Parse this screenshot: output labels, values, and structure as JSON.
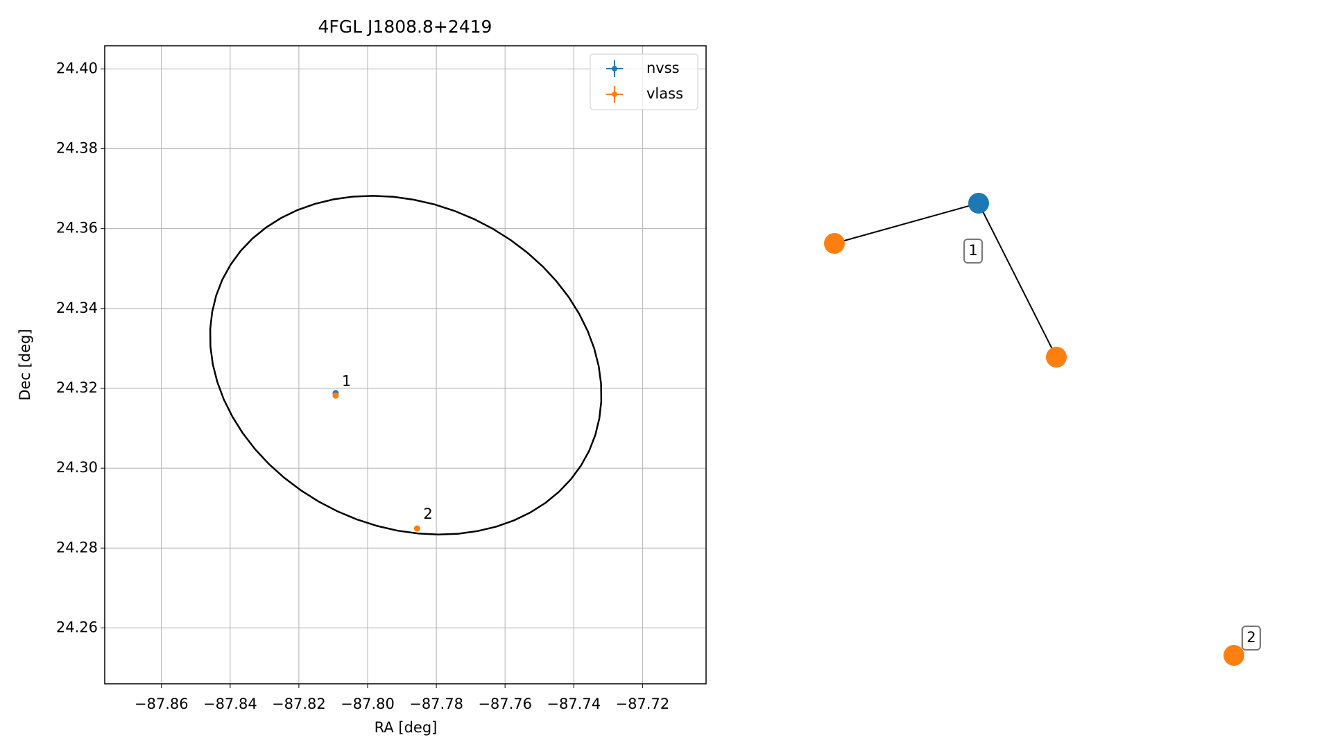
{
  "chart_data": [
    {
      "type": "scatter",
      "title": "4FGL J1808.8+2419",
      "xlabel": "RA [deg]",
      "ylabel": "Dec [deg]",
      "xlim": [
        -87.8765,
        -87.7015
      ],
      "ylim": [
        24.246,
        24.4058
      ],
      "xticks": [
        {
          "value": -87.86,
          "label": "−87.86"
        },
        {
          "value": -87.84,
          "label": "−87.84"
        },
        {
          "value": -87.82,
          "label": "−87.82"
        },
        {
          "value": -87.8,
          "label": "−87.80"
        },
        {
          "value": -87.78,
          "label": "−87.78"
        },
        {
          "value": -87.76,
          "label": "−87.76"
        },
        {
          "value": -87.74,
          "label": "−87.74"
        },
        {
          "value": -87.72,
          "label": "−87.72"
        }
      ],
      "yticks": [
        24.26,
        24.28,
        {
          "value": 24.3,
          "label": "24.30"
        },
        24.32,
        24.34,
        24.36,
        24.38,
        {
          "value": 24.4,
          "label": "24.40"
        }
      ],
      "grid": true,
      "legend": "upper right",
      "series": [
        {
          "name": "nvss",
          "color": "#1f77b4",
          "x": [
            -87.8093
          ],
          "values": [
            24.3188
          ]
        },
        {
          "name": "vlass",
          "color": "#ff7f0e",
          "x": [
            -87.8093,
            -87.7856
          ],
          "values": [
            24.3182,
            24.2849
          ]
        }
      ],
      "annotations": [
        "1",
        "2"
      ],
      "ellipse": {
        "x": -87.7889,
        "y": 24.3258,
        "a": 0.0589,
        "b": 0.0404,
        "angle": 25
      }
    },
    {
      "type": "network",
      "node_colors": [
        "#1f77b4",
        "#ff7f0e",
        "#ff7f0e",
        "#ff7f0e"
      ],
      "edges": [
        [
          0,
          1
        ],
        [
          0,
          2
        ]
      ],
      "labels": [
        "1",
        "2"
      ]
    }
  ]
}
